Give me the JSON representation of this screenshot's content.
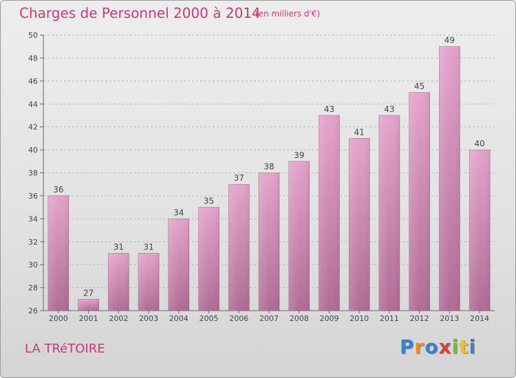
{
  "header": {
    "title": "Charges de Personnel 2000 à 2014",
    "subtitle": "(en milliers d'€)"
  },
  "footer": {
    "commune": "LA TRéTOIRE",
    "logo": {
      "letters": [
        "P",
        "r",
        "o",
        "x",
        "i",
        "t",
        "i"
      ],
      "colors": [
        "#3a7fd0",
        "#f08a1c",
        "#3a7fd0",
        "#e03a3a",
        "#7ab83a",
        "#f0c020",
        "#3a7fd0"
      ]
    }
  },
  "colors": {
    "bar": "#d98fbd",
    "bar_dark": "#b4739a",
    "text": "#444444",
    "accent": "#c33a7a"
  },
  "chart_data": {
    "type": "bar",
    "categories": [
      "2000",
      "2001",
      "2002",
      "2003",
      "2004",
      "2005",
      "2006",
      "2007",
      "2008",
      "2009",
      "2010",
      "2011",
      "2012",
      "2013",
      "2014"
    ],
    "values": [
      36,
      27,
      31,
      31,
      34,
      35,
      37,
      38,
      39,
      43,
      41,
      43,
      45,
      49,
      40
    ],
    "ylim": [
      26,
      50
    ],
    "yticks": [
      26,
      28,
      30,
      32,
      34,
      36,
      38,
      40,
      42,
      44,
      46,
      48,
      50
    ],
    "grid": "horizontal dashed",
    "data_labels": true
  }
}
